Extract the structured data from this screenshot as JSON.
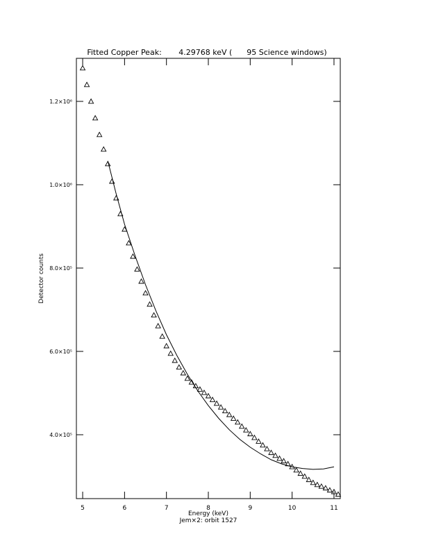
{
  "chart_data": {
    "type": "scatter",
    "title": "Fitted Copper Peak:       4.29768 keV (      95 Science windows)",
    "x_label": "Energy (keV)",
    "subtitle": "Jem×2: orbit 1527",
    "y_label": "Detector counts",
    "xlim": [
      4.85,
      11.15
    ],
    "ylim": [
      246700,
      1303300
    ],
    "xticks": [
      5,
      6,
      7,
      8,
      9,
      10,
      11
    ],
    "yticks": [
      {
        "value": 400000,
        "label": "4.0×10⁵"
      },
      {
        "value": 600000,
        "label": "6.0×10⁵"
      },
      {
        "value": 800000,
        "label": "8.0×10⁵"
      },
      {
        "value": 1000000,
        "label": "1.0×10⁶"
      },
      {
        "value": 1200000,
        "label": "1.2×10⁶"
      }
    ],
    "series": [
      {
        "style": "markers",
        "marker": "triangle",
        "color": "#000000",
        "x": [
          5.0,
          5.1,
          5.2,
          5.3,
          5.4,
          5.5,
          5.6,
          5.7,
          5.8,
          5.9,
          6.0,
          6.1,
          6.2,
          6.3,
          6.4,
          6.5,
          6.6,
          6.7,
          6.8,
          6.9,
          7.0,
          7.1,
          7.2,
          7.3,
          7.4,
          7.5,
          7.6,
          7.7,
          7.8,
          7.9,
          8.0,
          8.1,
          8.2,
          8.3,
          8.4,
          8.5,
          8.6,
          8.7,
          8.8,
          8.9,
          9.0,
          9.1,
          9.2,
          9.3,
          9.4,
          9.5,
          9.6,
          9.7,
          9.8,
          9.9,
          10.0,
          10.1,
          10.2,
          10.3,
          10.4,
          10.5,
          10.6,
          10.7,
          10.8,
          10.9,
          11.0,
          11.1
        ],
        "values": [
          1280000,
          1240000,
          1200000,
          1160000,
          1120000,
          1085000,
          1050000,
          1008000,
          968000,
          930000,
          893000,
          860000,
          828000,
          797000,
          768000,
          740000,
          713000,
          687000,
          661000,
          636000,
          613000,
          595000,
          578000,
          562000,
          548000,
          535000,
          526000,
          517000,
          509000,
          501000,
          493000,
          484000,
          475000,
          466000,
          457000,
          448000,
          439000,
          430000,
          420000,
          411000,
          402000,
          393000,
          384000,
          375000,
          366000,
          357000,
          350000,
          343000,
          337000,
          330000,
          323000,
          315000,
          307000,
          300000,
          292000,
          285000,
          280000,
          276000,
          272000,
          267000,
          263000,
          257000
        ]
      },
      {
        "style": "line",
        "color": "#000000",
        "x": [
          5.6,
          5.8,
          6.0,
          6.25,
          6.5,
          6.75,
          7.0,
          7.25,
          7.5,
          7.75,
          8.0,
          8.25,
          8.5,
          8.75,
          9.0,
          9.25,
          9.5,
          9.75,
          10.0,
          10.25,
          10.5,
          10.75,
          11.0
        ],
        "values": [
          1057000,
          978000,
          905000,
          830000,
          760000,
          697000,
          640000,
          590000,
          545000,
          505000,
          470000,
          439000,
          412000,
          389000,
          370000,
          354000,
          340000,
          330000,
          323000,
          319000,
          317000,
          318000,
          323000
        ]
      }
    ]
  }
}
